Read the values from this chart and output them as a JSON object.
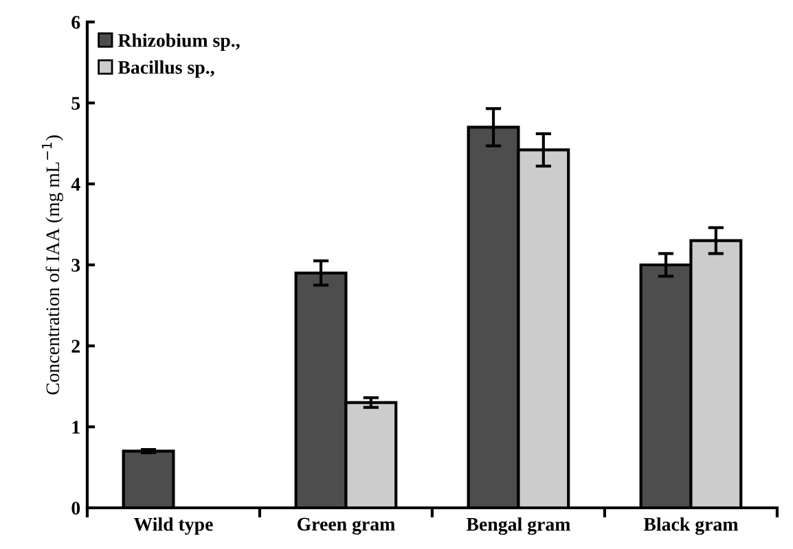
{
  "chart_data": {
    "type": "bar",
    "ylabel": "Concentration of IAA (mg mL$^{−1}$)",
    "categories": [
      "Wild type",
      "Green gram",
      "Bengal gram",
      "Black gram"
    ],
    "series": [
      {
        "name": "Rhizobium sp.,",
        "color": "#4d4d4d",
        "values": [
          0.7,
          2.9,
          4.7,
          3.0
        ],
        "errors": [
          0.02,
          0.15,
          0.23,
          0.14
        ]
      },
      {
        "name": "Bacillus sp.,",
        "color": "#cccccc",
        "values": [
          null,
          1.3,
          4.42,
          3.3
        ],
        "errors": [
          null,
          0.06,
          0.2,
          0.16
        ]
      }
    ],
    "ylim": [
      0,
      6
    ],
    "yticks": [
      0,
      1,
      2,
      3,
      4,
      5,
      6
    ],
    "grid": false,
    "legend": "top left"
  }
}
